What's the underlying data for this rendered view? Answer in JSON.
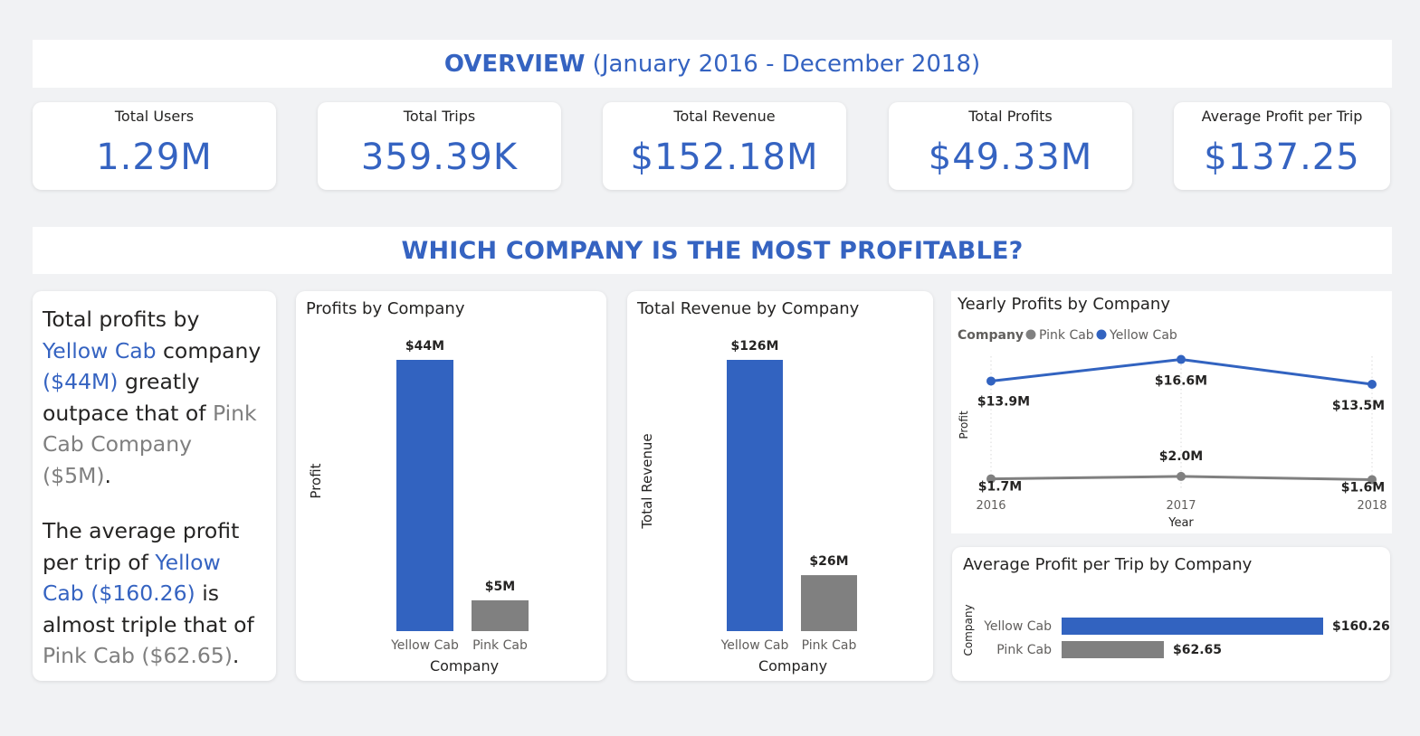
{
  "header": {
    "title_bold": "OVERVIEW",
    "title_range": "(January 2016 - December 2018)"
  },
  "kpis": [
    {
      "label": "Total Users",
      "value": "1.29M"
    },
    {
      "label": "Total Trips",
      "value": "359.39K"
    },
    {
      "label": "Total Revenue",
      "value": "$152.18M"
    },
    {
      "label": "Total Profits",
      "value": "$49.33M"
    },
    {
      "label": "Average Profit per Trip",
      "value": "$137.25"
    }
  ],
  "section": {
    "title": "WHICH COMPANY IS THE MOST PROFITABLE?"
  },
  "narrative": {
    "p1": [
      "Total profits by ",
      "Yellow Cab",
      " company ",
      "($44M)",
      " greatly outpace that of ",
      "Pink Cab Company ($5M)",
      "."
    ],
    "p2": [
      "The average profit per trip of ",
      "Yellow Cab ($160.26)",
      " is almost triple that of ",
      "Pink Cab ($62.65)",
      "."
    ]
  },
  "colors": {
    "yellow_cab": "#3263c0",
    "pink_cab": "#808080",
    "accent": "#3563c1"
  },
  "chart_data": [
    {
      "type": "bar",
      "title": "Profits by Company",
      "xlabel": "Company",
      "ylabel": "Profit",
      "categories": [
        "Yellow Cab",
        "Pink Cab"
      ],
      "values": [
        44,
        5
      ],
      "data_labels": [
        "$44M",
        "$5M"
      ],
      "ylim": [
        0,
        44
      ]
    },
    {
      "type": "bar",
      "title": "Total Revenue by Company",
      "xlabel": "Company",
      "ylabel": "Total Revenue",
      "categories": [
        "Yellow Cab",
        "Pink Cab"
      ],
      "values": [
        126,
        26
      ],
      "data_labels": [
        "$126M",
        "$26M"
      ],
      "ylim": [
        0,
        126
      ]
    },
    {
      "type": "line",
      "title": "Yearly Profits by Company",
      "xlabel": "Year",
      "ylabel": "Profit",
      "legend_title": "Company",
      "legend_position": "top-left",
      "x": [
        "2016",
        "2017",
        "2018"
      ],
      "ylim": [
        1.2,
        17.0
      ],
      "series": [
        {
          "name": "Pink Cab",
          "values": [
            1.7,
            2.0,
            1.6
          ],
          "labels": [
            "$1.7M",
            "$2.0M",
            "$1.6M"
          ]
        },
        {
          "name": "Yellow Cab",
          "values": [
            13.9,
            16.6,
            13.5
          ],
          "labels": [
            "$13.9M",
            "$16.6M",
            "$13.5M"
          ]
        }
      ]
    },
    {
      "type": "bar",
      "orientation": "horizontal",
      "title": "Average Profit per Trip by Company",
      "ylabel": "Company",
      "categories": [
        "Yellow Cab",
        "Pink Cab"
      ],
      "values": [
        160.26,
        62.65
      ],
      "data_labels": [
        "$160.26",
        "$62.65"
      ],
      "xlim": [
        0,
        160.26
      ]
    }
  ]
}
